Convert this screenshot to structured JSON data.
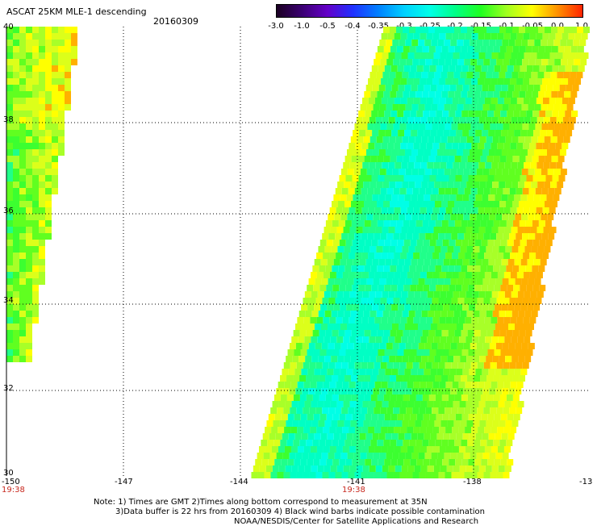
{
  "title": "ASCAT 25KM MLE-1 descending",
  "date": "20160309",
  "colorbar": {
    "tick_labels": [
      "-3.0",
      "-1.0",
      "-0.5",
      "-0.4",
      "-0.35",
      "-0.3",
      "-0.25",
      "-0.2",
      "-0.15",
      "-0.1",
      "-0.05",
      "0.0",
      "1.0"
    ],
    "colors": [
      "#1a0020",
      "#3a0070",
      "#6400c8",
      "#2030ff",
      "#0080ff",
      "#00d0ff",
      "#00ffe8",
      "#00ff88",
      "#20ff20",
      "#a0ff20",
      "#ffff00",
      "#ff9000",
      "#ff2000"
    ]
  },
  "map": {
    "lat_labels": [
      "40",
      "38",
      "36",
      "34",
      "32",
      "30"
    ],
    "lon_labels": [
      "-150",
      "-147",
      "-144",
      "-141",
      "-138",
      "-13"
    ],
    "lon_range": [
      -150,
      -135
    ],
    "lat_range": [
      30,
      40
    ],
    "time_labels": [
      "19:38",
      "19:38"
    ]
  },
  "notes": {
    "line1": "Note: 1) Times are GMT 2)Times along bottom correspond to measurement at 35N",
    "line2": "3)Data buffer is 22 hrs from 20160309 4) Black wind barbs indicate possible contamination",
    "line3": "NOAA/NESDIS/Center for Satellite Applications and Research"
  }
}
